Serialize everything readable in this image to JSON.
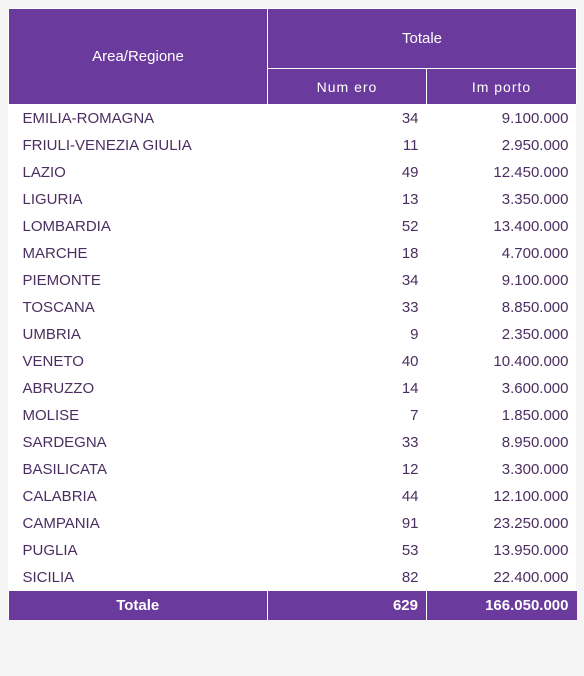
{
  "colors": {
    "header_bg": "#6a3b9c",
    "body_text": "#4b2e60",
    "row_bg": "#ffffff"
  },
  "headers": {
    "region": "Area/Regione",
    "totale": "Totale",
    "numero": "Num ero",
    "importo": "Im porto"
  },
  "rows": [
    {
      "region": "EMILIA-ROMAGNA",
      "numero": "34",
      "importo": "9.100.000"
    },
    {
      "region": "FRIULI-VENEZIA GIULIA",
      "numero": "11",
      "importo": "2.950.000"
    },
    {
      "region": "LAZIO",
      "numero": "49",
      "importo": "12.450.000"
    },
    {
      "region": "LIGURIA",
      "numero": "13",
      "importo": "3.350.000"
    },
    {
      "region": "LOMBARDIA",
      "numero": "52",
      "importo": "13.400.000"
    },
    {
      "region": "MARCHE",
      "numero": "18",
      "importo": "4.700.000"
    },
    {
      "region": "PIEMONTE",
      "numero": "34",
      "importo": "9.100.000"
    },
    {
      "region": "TOSCANA",
      "numero": "33",
      "importo": "8.850.000"
    },
    {
      "region": "UMBRIA",
      "numero": "9",
      "importo": "2.350.000"
    },
    {
      "region": "VENETO",
      "numero": "40",
      "importo": "10.400.000"
    },
    {
      "region": "ABRUZZO",
      "numero": "14",
      "importo": "3.600.000"
    },
    {
      "region": "MOLISE",
      "numero": "7",
      "importo": "1.850.000"
    },
    {
      "region": "SARDEGNA",
      "numero": "33",
      "importo": "8.950.000"
    },
    {
      "region": "BASILICATA",
      "numero": "12",
      "importo": "3.300.000"
    },
    {
      "region": "CALABRIA",
      "numero": "44",
      "importo": "12.100.000"
    },
    {
      "region": "CAMPANIA",
      "numero": "91",
      "importo": "23.250.000"
    },
    {
      "region": "PUGLIA",
      "numero": "53",
      "importo": "13.950.000"
    },
    {
      "region": "SICILIA",
      "numero": "82",
      "importo": "22.400.000"
    }
  ],
  "total": {
    "label": "Totale",
    "numero": "629",
    "importo": "166.050.000"
  }
}
